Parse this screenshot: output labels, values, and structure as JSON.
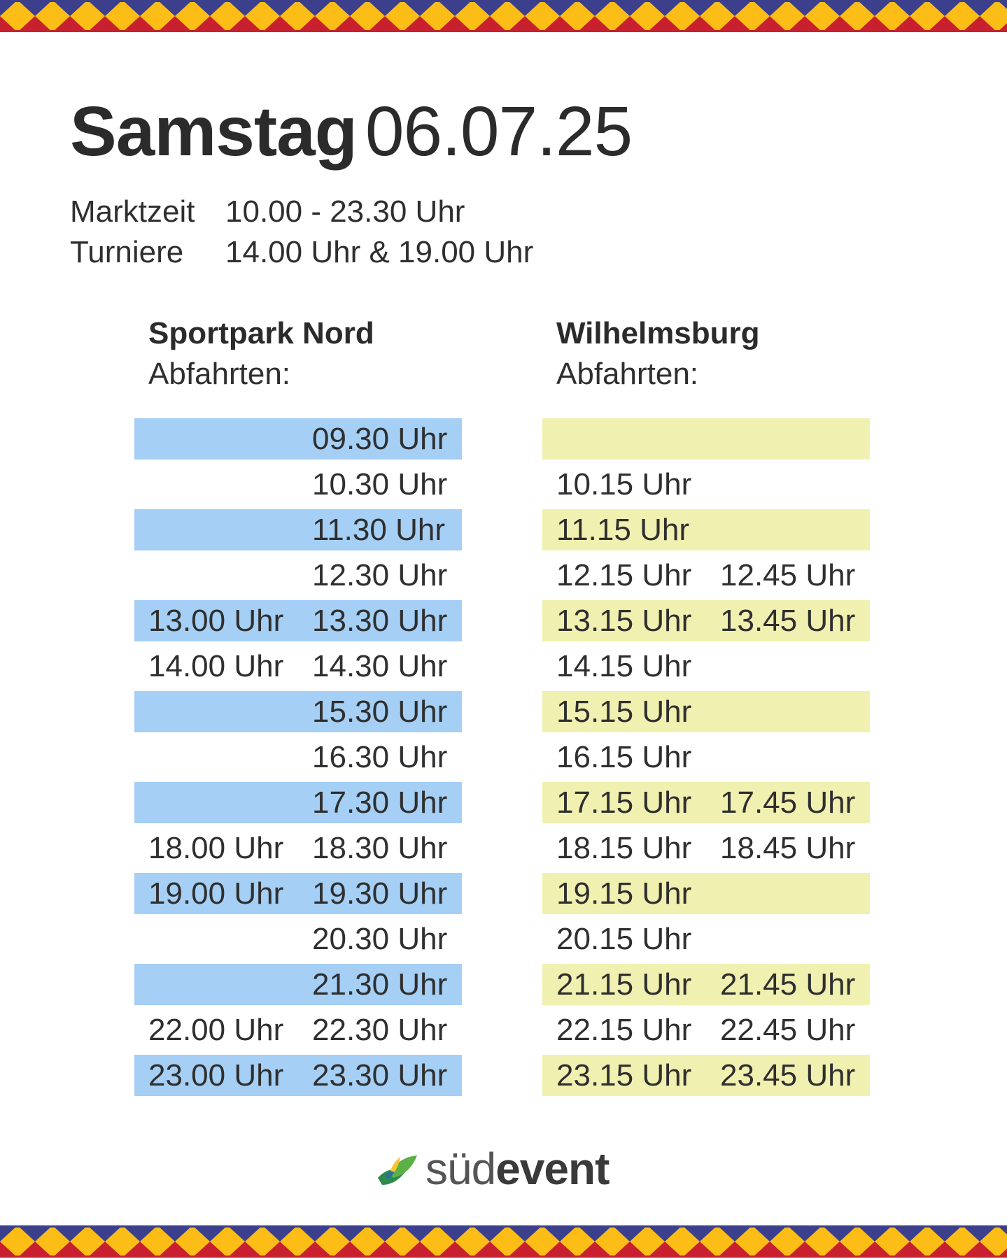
{
  "title": {
    "day": "Samstag",
    "date": "06.07.25"
  },
  "info": [
    {
      "label": "Marktzeit",
      "value": "10.00 - 23.30 Uhr"
    },
    {
      "label": "Turniere",
      "value": "14.00 Uhr & 19.00 Uhr"
    }
  ],
  "left": {
    "station": "Sportpark Nord",
    "sub": "Abfahrten:",
    "rows": [
      [
        "",
        "09.30 Uhr"
      ],
      [
        "",
        "10.30 Uhr"
      ],
      [
        "",
        "11.30 Uhr"
      ],
      [
        "",
        "12.30 Uhr"
      ],
      [
        "13.00 Uhr",
        "13.30 Uhr"
      ],
      [
        "14.00 Uhr",
        "14.30 Uhr"
      ],
      [
        "",
        "15.30 Uhr"
      ],
      [
        "",
        "16.30 Uhr"
      ],
      [
        "",
        "17.30 Uhr"
      ],
      [
        "18.00 Uhr",
        "18.30 Uhr"
      ],
      [
        "19.00 Uhr",
        "19.30 Uhr"
      ],
      [
        "",
        "20.30 Uhr"
      ],
      [
        "",
        "21.30 Uhr"
      ],
      [
        "22.00 Uhr",
        "22.30 Uhr"
      ],
      [
        "23.00 Uhr",
        "23.30 Uhr"
      ]
    ]
  },
  "right": {
    "station": "Wilhelmsburg",
    "sub": "Abfahrten:",
    "rows": [
      [
        "",
        ""
      ],
      [
        "10.15 Uhr",
        ""
      ],
      [
        "11.15 Uhr",
        ""
      ],
      [
        "12.15 Uhr",
        "12.45 Uhr"
      ],
      [
        "13.15 Uhr",
        "13.45 Uhr"
      ],
      [
        "14.15 Uhr",
        ""
      ],
      [
        "15.15 Uhr",
        ""
      ],
      [
        "16.15 Uhr",
        ""
      ],
      [
        "17.15 Uhr",
        "17.45 Uhr"
      ],
      [
        "18.15 Uhr",
        "18.45 Uhr"
      ],
      [
        "19.15 Uhr",
        ""
      ],
      [
        "20.15 Uhr",
        ""
      ],
      [
        "21.15 Uhr",
        "21.45 Uhr"
      ],
      [
        "22.15 Uhr",
        "22.45 Uhr"
      ],
      [
        "23.15 Uhr",
        "23.45 Uhr"
      ]
    ]
  },
  "logo": {
    "part1": "süd",
    "part2": "event"
  },
  "colors": {
    "left_row_shade": "#a5cff5",
    "right_row_shade": "#f0f1b1",
    "border_yellow": "#fbbd16",
    "border_red": "#c8202f",
    "border_navy": "#3b3f8c"
  }
}
